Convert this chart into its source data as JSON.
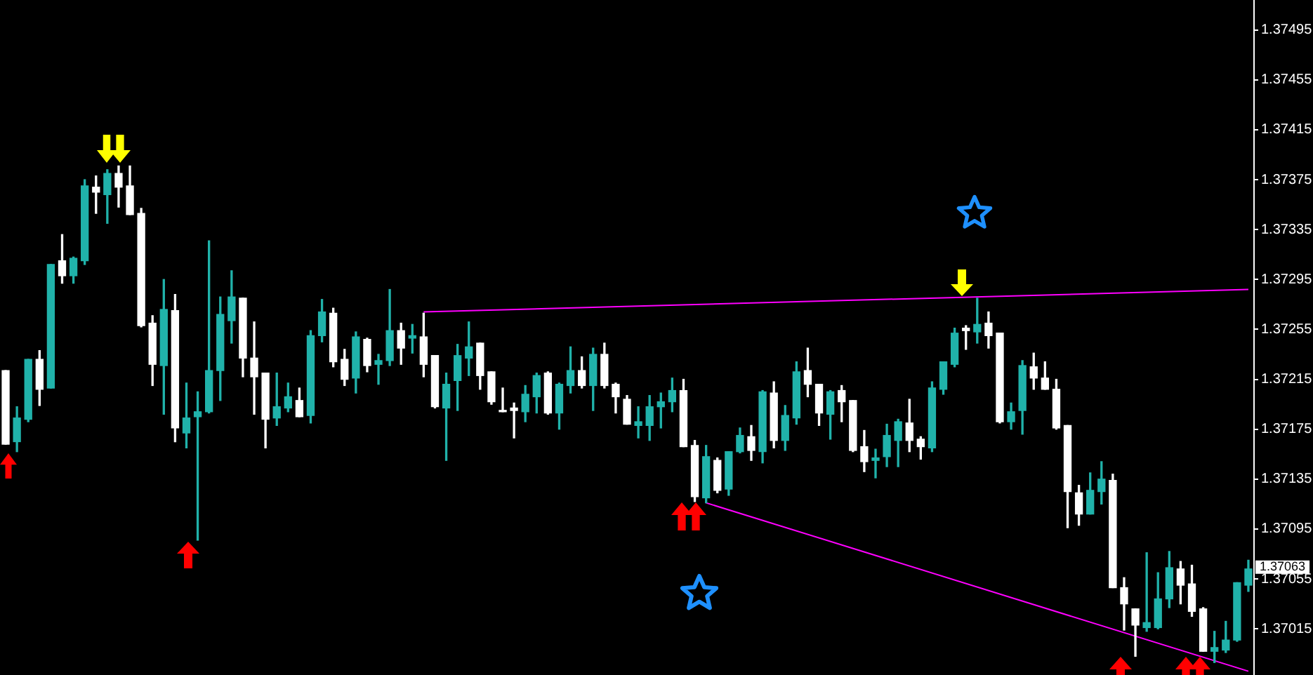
{
  "chart_data": {
    "type": "candlestick",
    "categories": [
      null,
      null,
      null,
      null,
      null,
      null,
      null,
      null,
      null,
      null,
      null,
      null,
      null,
      null,
      null,
      null,
      null,
      null,
      null,
      null,
      null,
      null,
      null,
      null,
      null,
      null,
      null,
      null,
      null,
      null,
      null,
      null,
      null,
      null,
      null,
      null,
      null,
      null,
      null,
      null,
      null,
      null,
      null,
      null,
      null,
      null,
      null,
      null,
      null,
      null,
      null,
      null,
      null,
      null,
      null,
      null,
      null,
      null,
      null,
      null,
      null,
      null,
      null,
      null,
      null,
      null,
      null,
      null,
      null,
      null,
      null,
      null,
      null,
      null,
      null,
      null,
      null,
      null,
      null,
      null,
      null,
      null,
      null,
      null,
      null,
      null,
      null,
      null,
      null,
      null,
      null,
      null,
      null,
      null,
      null,
      null,
      null,
      null,
      null,
      null,
      null,
      null,
      null,
      null,
      null,
      null,
      null,
      null,
      null,
      null,
      null
    ],
    "ohlc": [
      [
        1.37222,
        1.37222,
        1.37163,
        1.37163
      ],
      [
        1.37165,
        1.37193,
        1.37157,
        1.37184
      ],
      [
        1.37183,
        1.37231,
        1.37181,
        1.37231
      ],
      [
        1.37231,
        1.37238,
        1.37194,
        1.37207
      ],
      [
        1.37208,
        1.37307,
        1.37208,
        1.37307
      ],
      [
        1.3731,
        1.37331,
        1.37292,
        1.37298
      ],
      [
        1.37298,
        1.37313,
        1.37292,
        1.37312
      ],
      [
        1.3731,
        1.37375,
        1.37307,
        1.3737
      ],
      [
        1.37369,
        1.37378,
        1.37348,
        1.37365
      ],
      [
        1.37363,
        1.37383,
        1.3734,
        1.3738
      ],
      [
        1.3738,
        1.37386,
        1.37353,
        1.37369
      ],
      [
        1.3737,
        1.37386,
        1.37347,
        1.37347
      ],
      [
        1.37348,
        1.37352,
        1.37257,
        1.37258
      ],
      [
        1.3726,
        1.37266,
        1.3721,
        1.37227
      ],
      [
        1.37226,
        1.37295,
        1.37187,
        1.37271
      ],
      [
        1.3727,
        1.37283,
        1.37165,
        1.37176
      ],
      [
        1.37172,
        1.37212,
        1.3716,
        1.37184
      ],
      [
        1.37185,
        1.37205,
        1.37086,
        1.37189
      ],
      [
        1.37189,
        1.37326,
        1.37188,
        1.37222
      ],
      [
        1.37222,
        1.37281,
        1.37198,
        1.37267
      ],
      [
        1.37262,
        1.37302,
        1.37244,
        1.37281
      ],
      [
        1.3728,
        1.3728,
        1.37217,
        1.37232
      ],
      [
        1.37232,
        1.37261,
        1.37187,
        1.37217
      ],
      [
        1.3722,
        1.3722,
        1.3716,
        1.37183
      ],
      [
        1.37184,
        1.3722,
        1.37178,
        1.37193
      ],
      [
        1.37192,
        1.37212,
        1.37189,
        1.37201
      ],
      [
        1.37198,
        1.37208,
        1.37185,
        1.37185
      ],
      [
        1.37186,
        1.37254,
        1.3718,
        1.3725
      ],
      [
        1.3725,
        1.37279,
        1.37245,
        1.37269
      ],
      [
        1.37268,
        1.37272,
        1.37225,
        1.37229
      ],
      [
        1.37231,
        1.37239,
        1.3721,
        1.37215
      ],
      [
        1.37216,
        1.37253,
        1.37204,
        1.37249
      ],
      [
        1.37247,
        1.37248,
        1.37221,
        1.37226
      ],
      [
        1.37227,
        1.37235,
        1.37211,
        1.3723
      ],
      [
        1.3723,
        1.37287,
        1.37226,
        1.37254
      ],
      [
        1.37254,
        1.3726,
        1.37227,
        1.3724
      ],
      [
        1.37248,
        1.37259,
        1.37236,
        1.3725
      ],
      [
        1.37249,
        1.37268,
        1.37217,
        1.37227
      ],
      [
        1.37234,
        1.37234,
        1.37192,
        1.37193
      ],
      [
        1.37192,
        1.3722,
        1.3715,
        1.37211
      ],
      [
        1.37214,
        1.37243,
        1.3719,
        1.37234
      ],
      [
        1.37232,
        1.37261,
        1.37218,
        1.37241
      ],
      [
        1.37244,
        1.37244,
        1.37207,
        1.37218
      ],
      [
        1.37221,
        1.37221,
        1.37195,
        1.37197
      ],
      [
        1.3719,
        1.37208,
        1.37189,
        1.37189
      ],
      [
        1.37192,
        1.37196,
        1.37168,
        1.3719
      ],
      [
        1.37189,
        1.3721,
        1.37181,
        1.37203
      ],
      [
        1.37201,
        1.3722,
        1.37188,
        1.37218
      ],
      [
        1.3722,
        1.37221,
        1.37187,
        1.37188
      ],
      [
        1.37188,
        1.37212,
        1.37175,
        1.37211
      ],
      [
        1.3721,
        1.37241,
        1.37204,
        1.37222
      ],
      [
        1.37222,
        1.37233,
        1.37208,
        1.3721
      ],
      [
        1.3721,
        1.3724,
        1.3719,
        1.37235
      ],
      [
        1.37235,
        1.37244,
        1.37208,
        1.3721
      ],
      [
        1.37211,
        1.37212,
        1.37188,
        1.37201
      ],
      [
        1.37199,
        1.37202,
        1.37179,
        1.37179
      ],
      [
        1.37178,
        1.37193,
        1.37168,
        1.37181
      ],
      [
        1.37178,
        1.37202,
        1.37166,
        1.37193
      ],
      [
        1.37193,
        1.37204,
        1.37176,
        1.37197
      ],
      [
        1.37197,
        1.37216,
        1.37189,
        1.37206
      ],
      [
        1.37206,
        1.37215,
        1.37161,
        1.37161
      ],
      [
        1.37162,
        1.37166,
        1.37117,
        1.37121
      ],
      [
        1.3712,
        1.37162,
        1.37116,
        1.37153
      ],
      [
        1.3715,
        1.37152,
        1.37124,
        1.37126
      ],
      [
        1.37127,
        1.37157,
        1.37122,
        1.37157
      ],
      [
        1.37157,
        1.37176,
        1.37156,
        1.3717
      ],
      [
        1.37169,
        1.37178,
        1.3715,
        1.37158
      ],
      [
        1.37157,
        1.37206,
        1.37148,
        1.37205
      ],
      [
        1.37204,
        1.37213,
        1.3716,
        1.37166
      ],
      [
        1.37166,
        1.37194,
        1.37158,
        1.37186
      ],
      [
        1.37184,
        1.37229,
        1.37179,
        1.37221
      ],
      [
        1.37222,
        1.3724,
        1.37201,
        1.37211
      ],
      [
        1.37211,
        1.37211,
        1.37178,
        1.37188
      ],
      [
        1.37187,
        1.37206,
        1.37167,
        1.37205
      ],
      [
        1.37206,
        1.3721,
        1.37181,
        1.37197
      ],
      [
        1.37198,
        1.37198,
        1.37157,
        1.37158
      ],
      [
        1.37161,
        1.37174,
        1.37141,
        1.37149
      ],
      [
        1.3715,
        1.37159,
        1.37136,
        1.37152
      ],
      [
        1.37153,
        1.37179,
        1.37145,
        1.3717
      ],
      [
        1.37166,
        1.37183,
        1.37145,
        1.37181
      ],
      [
        1.3718,
        1.37199,
        1.37157,
        1.37166
      ],
      [
        1.37167,
        1.37169,
        1.37151,
        1.37161
      ],
      [
        1.3716,
        1.37213,
        1.37157,
        1.37208
      ],
      [
        1.37207,
        1.37229,
        1.37203,
        1.37229
      ],
      [
        1.37227,
        1.37256,
        1.37225,
        1.37252
      ],
      [
        1.37256,
        1.37258,
        1.37239,
        1.37254
      ],
      [
        1.37253,
        1.3728,
        1.37244,
        1.37259
      ],
      [
        1.3726,
        1.37269,
        1.3724,
        1.3725
      ],
      [
        1.37252,
        1.37252,
        1.3718,
        1.37181
      ],
      [
        1.37181,
        1.37196,
        1.37175,
        1.37189
      ],
      [
        1.3719,
        1.3723,
        1.37171,
        1.37226
      ],
      [
        1.37225,
        1.37236,
        1.37207,
        1.37216
      ],
      [
        1.37216,
        1.37229,
        1.37207,
        1.37207
      ],
      [
        1.37207,
        1.37215,
        1.37175,
        1.37176
      ],
      [
        1.37178,
        1.37178,
        1.37096,
        1.37125
      ],
      [
        1.37124,
        1.3713,
        1.37098,
        1.37107
      ],
      [
        1.37107,
        1.3714,
        1.37107,
        1.37126
      ],
      [
        1.37125,
        1.37149,
        1.37115,
        1.37135
      ],
      [
        1.37134,
        1.37139,
        1.37048,
        1.37048
      ],
      [
        1.37048,
        1.37056,
        1.37014,
        1.37035
      ],
      [
        1.37031,
        1.37031,
        1.36993,
        1.37018
      ],
      [
        1.37016,
        1.37076,
        1.37013,
        1.3702
      ],
      [
        1.37016,
        1.3706,
        1.37015,
        1.37039
      ],
      [
        1.37039,
        1.37077,
        1.37032,
        1.37064
      ],
      [
        1.37063,
        1.37069,
        1.37035,
        1.3705
      ],
      [
        1.37051,
        1.37066,
        1.37025,
        1.37029
      ],
      [
        1.37031,
        1.37032,
        1.36997,
        1.36997
      ],
      [
        1.36997,
        1.37013,
        1.36988,
        1.37
      ],
      [
        1.36998,
        1.37021,
        1.36996,
        1.37006
      ],
      [
        1.37006,
        1.37052,
        1.37005,
        1.37052
      ],
      [
        1.3705,
        1.3707,
        1.37045,
        1.37063
      ]
    ],
    "colors": [
      "#ffffff",
      "#20b2aa",
      "#20b2aa",
      "#ffffff",
      "#20b2aa",
      "#ffffff",
      "#20b2aa",
      "#20b2aa",
      "#ffffff",
      "#20b2aa",
      "#ffffff",
      "#ffffff",
      "#ffffff",
      "#ffffff",
      "#20b2aa",
      "#ffffff",
      "#20b2aa",
      "#20b2aa",
      "#20b2aa",
      "#20b2aa",
      "#20b2aa",
      "#ffffff",
      "#ffffff",
      "#ffffff",
      "#20b2aa",
      "#20b2aa",
      "#ffffff",
      "#20b2aa",
      "#20b2aa",
      "#ffffff",
      "#ffffff",
      "#20b2aa",
      "#ffffff",
      "#20b2aa",
      "#20b2aa",
      "#ffffff",
      "#20b2aa",
      "#ffffff",
      "#ffffff",
      "#20b2aa",
      "#20b2aa",
      "#20b2aa",
      "#ffffff",
      "#ffffff",
      "#ffffff",
      "#ffffff",
      "#20b2aa",
      "#20b2aa",
      "#ffffff",
      "#20b2aa",
      "#20b2aa",
      "#ffffff",
      "#20b2aa",
      "#ffffff",
      "#ffffff",
      "#ffffff",
      "#20b2aa",
      "#20b2aa",
      "#20b2aa",
      "#20b2aa",
      "#ffffff",
      "#ffffff",
      "#20b2aa",
      "#ffffff",
      "#20b2aa",
      "#20b2aa",
      "#ffffff",
      "#20b2aa",
      "#ffffff",
      "#20b2aa",
      "#20b2aa",
      "#ffffff",
      "#ffffff",
      "#20b2aa",
      "#ffffff",
      "#ffffff",
      "#ffffff",
      "#20b2aa",
      "#20b2aa",
      "#20b2aa",
      "#ffffff",
      "#ffffff",
      "#20b2aa",
      "#20b2aa",
      "#20b2aa",
      "#ffffff",
      "#20b2aa",
      "#ffffff",
      "#ffffff",
      "#20b2aa",
      "#20b2aa",
      "#ffffff",
      "#ffffff",
      "#ffffff",
      "#ffffff",
      "#ffffff",
      "#20b2aa",
      "#20b2aa",
      "#ffffff",
      "#ffffff",
      "#ffffff",
      "#20b2aa",
      "#20b2aa",
      "#20b2aa",
      "#ffffff",
      "#ffffff",
      "#ffffff",
      "#20b2aa",
      "#20b2aa",
      "#20b2aa",
      "#20b2aa"
    ],
    "series": [
      {
        "type": "line",
        "color": "#ff00ff",
        "values": [
          null,
          null,
          null,
          null,
          null,
          null,
          null,
          null,
          null,
          null,
          null,
          null,
          null,
          null,
          null,
          null,
          null,
          null,
          null,
          null,
          null,
          null,
          null,
          null,
          null,
          null,
          null,
          null,
          null,
          null,
          null,
          null,
          null,
          null,
          null,
          null,
          null,
          1.37269,
          null,
          null,
          null,
          null,
          null,
          null,
          null,
          null,
          null,
          null,
          null,
          null,
          null,
          null,
          null,
          null,
          null,
          null,
          null,
          null,
          null,
          null,
          null,
          null,
          null,
          null,
          null,
          null,
          null,
          null,
          null,
          null,
          null,
          null,
          null,
          null,
          null,
          null,
          null,
          null,
          null,
          null,
          null,
          null,
          null,
          null,
          null,
          null,
          null,
          null,
          null,
          null,
          null,
          null,
          null,
          null,
          null,
          null,
          null,
          null,
          null,
          null,
          null,
          null,
          null,
          null,
          null,
          null,
          null,
          null,
          null,
          null,
          1.37287
        ]
      },
      {
        "type": "line",
        "color": "#ff00ff",
        "values": [
          null,
          null,
          null,
          null,
          null,
          null,
          null,
          null,
          null,
          null,
          null,
          null,
          null,
          null,
          null,
          null,
          null,
          null,
          null,
          null,
          null,
          null,
          null,
          null,
          null,
          null,
          null,
          null,
          null,
          null,
          null,
          null,
          null,
          null,
          null,
          null,
          null,
          null,
          null,
          null,
          null,
          null,
          null,
          null,
          null,
          null,
          null,
          null,
          null,
          null,
          null,
          null,
          null,
          null,
          null,
          null,
          null,
          null,
          null,
          null,
          null,
          null,
          1.37116,
          null,
          null,
          null,
          null,
          null,
          null,
          null,
          null,
          null,
          null,
          null,
          null,
          null,
          null,
          null,
          null,
          null,
          null,
          null,
          null,
          null,
          null,
          null,
          null,
          null,
          null,
          null,
          null,
          null,
          null,
          null,
          null,
          null,
          null,
          null,
          null,
          null,
          null,
          null,
          null,
          null,
          null,
          null,
          null,
          null,
          null,
          null,
          1.36981
        ]
      }
    ],
    "ylim": [
      1.36978,
      1.37519
    ],
    "yticks": [
      {
        "value": 1.37015,
        "label": "1.37015"
      },
      {
        "value": 1.37055,
        "label": "1.37055"
      },
      {
        "value": 1.37095,
        "label": "1.37095"
      },
      {
        "value": 1.37135,
        "label": "1.37135"
      },
      {
        "value": 1.37175,
        "label": "1.37175"
      },
      {
        "value": 1.37215,
        "label": "1.37215"
      },
      {
        "value": 1.37255,
        "label": "1.37255"
      },
      {
        "value": 1.37295,
        "label": "1.37295"
      },
      {
        "value": 1.37335,
        "label": "1.37335"
      },
      {
        "value": 1.37375,
        "label": "1.37375"
      },
      {
        "value": 1.37415,
        "label": "1.37415"
      },
      {
        "value": 1.37455,
        "label": "1.37455"
      },
      {
        "value": 1.37495,
        "label": "1.37495"
      }
    ],
    "tick_labels": "y",
    "annotations": [
      "1.37063"
    ]
  }
}
